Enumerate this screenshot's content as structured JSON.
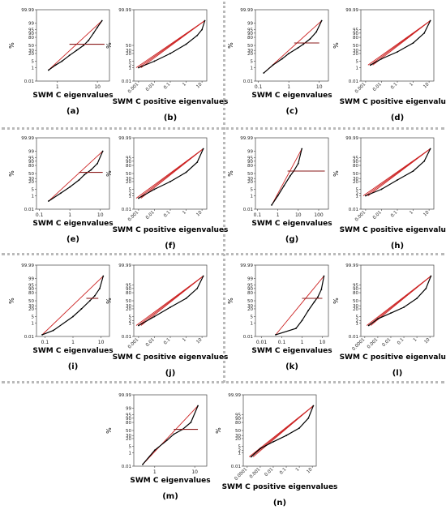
{
  "figure": {
    "y_axis_label": "%",
    "panels": [
      {
        "id": "a",
        "label": "(a)",
        "xlabel": "SWM C eigenvalues",
        "y_ticks": [
          "99.99",
          "99",
          "95",
          "90",
          "80",
          "50",
          "30",
          "20",
          "5",
          "1",
          "0.01"
        ],
        "x_ticks": [
          "1",
          "10"
        ]
      },
      {
        "id": "b",
        "label": "(b)",
        "xlabel": "SWM C positive eigenvalues",
        "y_ticks": [
          "99.99",
          "50",
          "30",
          "20",
          "5",
          "2",
          "1",
          "0.01"
        ],
        "x_ticks": [
          "0.001",
          "0.01",
          "0.1",
          "1",
          "10"
        ]
      },
      {
        "id": "c",
        "label": "(c)",
        "xlabel": "SWM C eigenvalues",
        "y_ticks": [
          "99.99",
          "99",
          "95",
          "90",
          "80",
          "50",
          "30",
          "20",
          "5",
          "1",
          "0.01"
        ],
        "x_ticks": [
          "0.1",
          "1",
          "10"
        ]
      },
      {
        "id": "d",
        "label": "(d)",
        "xlabel": "SWM C positive eigenvalues",
        "y_ticks": [
          "99.99",
          "95",
          "90",
          "80",
          "50",
          "30",
          "20",
          "5",
          "1",
          "0.01"
        ],
        "x_ticks": [
          "0.001",
          "0.01",
          "0.1",
          "1",
          "10"
        ]
      },
      {
        "id": "e",
        "label": "(e)",
        "xlabel": "SWM C eigenvalues",
        "y_ticks": [
          "99.99",
          "99",
          "95",
          "90",
          "80",
          "50",
          "30",
          "20",
          "5",
          "1",
          "0.01"
        ],
        "x_ticks": [
          "0.1",
          "1",
          "10"
        ]
      },
      {
        "id": "f",
        "label": "(f)",
        "xlabel": "SWM C positive eigenvalues",
        "y_ticks": [
          "99.99",
          "95",
          "90",
          "80",
          "50",
          "30",
          "20",
          "5",
          "2",
          "1",
          "0.01"
        ],
        "x_ticks": [
          "0.001",
          "0.01",
          "0.1",
          "1",
          "10"
        ]
      },
      {
        "id": "g",
        "label": "(g)",
        "xlabel": "SWM C eigenvalues",
        "y_ticks": [
          "99.99",
          "99",
          "95",
          "90",
          "80",
          "50",
          "30",
          "20",
          "5",
          "1",
          "0.01"
        ],
        "x_ticks": [
          "0.1",
          "1",
          "10",
          "100"
        ]
      },
      {
        "id": "h",
        "label": "(h)",
        "xlabel": "SWM C positive eigenvalues",
        "y_ticks": [
          "99.99",
          "95",
          "90",
          "80",
          "50",
          "30",
          "20",
          "5",
          "2",
          "1",
          "0.01"
        ],
        "x_ticks": [
          "0.001",
          "0.01",
          "0.1",
          "1",
          "10"
        ]
      },
      {
        "id": "i",
        "label": "(i)",
        "xlabel": "SWM C eigenvalues",
        "y_ticks": [
          "99.99",
          "99",
          "95",
          "90",
          "80",
          "50",
          "30",
          "20",
          "5",
          "1",
          "0.01"
        ],
        "x_ticks": [
          "0.1",
          "1",
          "10"
        ]
      },
      {
        "id": "j",
        "label": "(j)",
        "xlabel": "SWM C positive eigenvalues",
        "y_ticks": [
          "99.99",
          "95",
          "90",
          "80",
          "50",
          "30",
          "20",
          "5",
          "2",
          "1",
          "0.01"
        ],
        "x_ticks": [
          "0.001",
          "0.01",
          "0.1",
          "1",
          "10"
        ]
      },
      {
        "id": "k",
        "label": "(k)",
        "xlabel": "SWM C eigenvalues",
        "y_ticks": [
          "99.99",
          "99",
          "95",
          "90",
          "80",
          "50",
          "30",
          "20",
          "5",
          "1",
          "0.01"
        ],
        "x_ticks": [
          "0.01",
          "0.1",
          "1",
          "10"
        ]
      },
      {
        "id": "l",
        "label": "(l)",
        "xlabel": "SWM C positive eigenvalues",
        "y_ticks": [
          "99.99",
          "95",
          "90",
          "80",
          "50",
          "30",
          "20",
          "5",
          "2",
          "1",
          "0.01"
        ],
        "x_ticks": [
          "0.0001",
          "0.001",
          "0.01",
          "0.1",
          "1",
          "10"
        ]
      },
      {
        "id": "m",
        "label": "(m)",
        "xlabel": "SWM C eigenvalues",
        "y_ticks": [
          "99.99",
          "99",
          "95",
          "90",
          "80",
          "50",
          "30",
          "20",
          "5",
          "1",
          "0.01"
        ],
        "x_ticks": [
          "1",
          "10"
        ]
      },
      {
        "id": "n",
        "label": "(n)",
        "xlabel": "SWM C positive eigenvalues",
        "y_ticks": [
          "99.99",
          "95",
          "90",
          "80",
          "50",
          "30",
          "20",
          "5",
          "2",
          "1",
          "0.01"
        ],
        "x_ticks": [
          "0.0001",
          "0.001",
          "0.01",
          "0.1",
          "1",
          "10"
        ]
      }
    ]
  },
  "chart_data": [
    {
      "panel": "a",
      "type": "scatter",
      "x_scale": "log",
      "y_scale": "normal-probability",
      "xlim": [
        0.3,
        20
      ],
      "ylim": [
        0.01,
        99.99
      ],
      "fit_line_color": "#cc2222",
      "data_color": "#000000",
      "points": [
        [
          0.6,
          0.5
        ],
        [
          0.9,
          2
        ],
        [
          1.3,
          5
        ],
        [
          2,
          15
        ],
        [
          3,
          30
        ],
        [
          4.5,
          50
        ],
        [
          6,
          70
        ],
        [
          8,
          90
        ],
        [
          10,
          97
        ],
        [
          13,
          99.5
        ]
      ],
      "hline": {
        "y": 55,
        "x_from": 2,
        "x_to": 15
      }
    },
    {
      "panel": "b",
      "type": "scatter",
      "x_scale": "log",
      "y_scale": "normal-probability",
      "xlim": [
        0.0005,
        20
      ],
      "ylim": [
        0.01,
        99.99
      ],
      "fit_line_color": "#cc2222",
      "data_color": "#000000",
      "points": [
        [
          0.001,
          1
        ],
        [
          0.01,
          5
        ],
        [
          0.1,
          20
        ],
        [
          1,
          55
        ],
        [
          5,
          85
        ],
        [
          10,
          95
        ],
        [
          15,
          99.5
        ]
      ]
    },
    {
      "panel": "c",
      "type": "scatter",
      "x_scale": "log",
      "y_scale": "normal-probability",
      "xlim": [
        0.08,
        20
      ],
      "ylim": [
        0.01,
        99.99
      ],
      "fit_line_color": "#cc2222",
      "data_color": "#000000",
      "points": [
        [
          0.15,
          0.2
        ],
        [
          0.3,
          2
        ],
        [
          0.6,
          8
        ],
        [
          1,
          20
        ],
        [
          2,
          40
        ],
        [
          3,
          55
        ],
        [
          5,
          75
        ],
        [
          8,
          92
        ],
        [
          12,
          99.5
        ]
      ],
      "hline": {
        "y": 60,
        "x_from": 1.5,
        "x_to": 10
      }
    },
    {
      "panel": "d",
      "type": "scatter",
      "x_scale": "log",
      "y_scale": "normal-probability",
      "xlim": [
        0.0005,
        20
      ],
      "ylim": [
        0.01,
        99.99
      ],
      "fit_line_color": "#cc2222",
      "data_color": "#000000",
      "points": [
        [
          0.002,
          2
        ],
        [
          0.01,
          8
        ],
        [
          0.1,
          25
        ],
        [
          1,
          60
        ],
        [
          5,
          90
        ],
        [
          12,
          99.5
        ]
      ]
    },
    {
      "panel": "e",
      "type": "scatter",
      "x_scale": "log",
      "y_scale": "normal-probability",
      "xlim": [
        0.08,
        20
      ],
      "ylim": [
        0.01,
        99.99
      ],
      "fit_line_color": "#cc2222",
      "data_color": "#000000",
      "points": [
        [
          0.2,
          0.2
        ],
        [
          0.5,
          2
        ],
        [
          1,
          8
        ],
        [
          2,
          25
        ],
        [
          3,
          45
        ],
        [
          5,
          65
        ],
        [
          8,
          85
        ],
        [
          12,
          99
        ]
      ],
      "hline": {
        "y": 55,
        "x_from": 2,
        "x_to": 12
      }
    },
    {
      "panel": "f",
      "type": "scatter",
      "x_scale": "log",
      "y_scale": "normal-probability",
      "xlim": [
        0.0005,
        20
      ],
      "ylim": [
        0.01,
        99.99
      ],
      "fit_line_color": "#cc2222",
      "data_color": "#000000",
      "points": [
        [
          0.001,
          0.5
        ],
        [
          0.01,
          5
        ],
        [
          0.1,
          20
        ],
        [
          1,
          55
        ],
        [
          5,
          88
        ],
        [
          12,
          99.5
        ]
      ]
    },
    {
      "panel": "g",
      "type": "scatter",
      "x_scale": "log",
      "y_scale": "normal-probability",
      "xlim": [
        0.08,
        300
      ],
      "ylim": [
        0.01,
        99.99
      ],
      "fit_line_color": "#cc2222",
      "data_color": "#000000",
      "points": [
        [
          0.5,
          0.05
        ],
        [
          1,
          1
        ],
        [
          2,
          10
        ],
        [
          4,
          40
        ],
        [
          6,
          60
        ],
        [
          10,
          85
        ],
        [
          15,
          99.5
        ]
      ],
      "hline": {
        "y": 60,
        "x_from": 3,
        "x_to": 200
      }
    },
    {
      "panel": "h",
      "type": "scatter",
      "x_scale": "log",
      "y_scale": "normal-probability",
      "xlim": [
        0.0005,
        20
      ],
      "ylim": [
        0.01,
        99.99
      ],
      "fit_line_color": "#cc2222",
      "data_color": "#000000",
      "points": [
        [
          0.001,
          1
        ],
        [
          0.01,
          5
        ],
        [
          0.1,
          25
        ],
        [
          1,
          60
        ],
        [
          5,
          90
        ],
        [
          12,
          99.5
        ]
      ]
    },
    {
      "panel": "i",
      "type": "scatter",
      "x_scale": "log",
      "y_scale": "normal-probability",
      "xlim": [
        0.05,
        20
      ],
      "ylim": [
        0.01,
        99.99
      ],
      "fit_line_color": "#cc2222",
      "data_color": "#000000",
      "points": [
        [
          0.08,
          0.02
        ],
        [
          0.2,
          0.1
        ],
        [
          1,
          5
        ],
        [
          2,
          20
        ],
        [
          4,
          50
        ],
        [
          6,
          70
        ],
        [
          9,
          90
        ],
        [
          12,
          99.5
        ]
      ],
      "hline": {
        "y": 60,
        "x_from": 3,
        "x_to": 8
      }
    },
    {
      "panel": "j",
      "type": "scatter",
      "x_scale": "log",
      "y_scale": "normal-probability",
      "xlim": [
        0.0005,
        20
      ],
      "ylim": [
        0.01,
        99.99
      ],
      "fit_line_color": "#cc2222",
      "data_color": "#000000",
      "points": [
        [
          0.001,
          0.5
        ],
        [
          0.01,
          5
        ],
        [
          0.1,
          25
        ],
        [
          1,
          60
        ],
        [
          5,
          90
        ],
        [
          12,
          99.5
        ]
      ]
    },
    {
      "panel": "k",
      "type": "scatter",
      "x_scale": "log",
      "y_scale": "normal-probability",
      "xlim": [
        0.005,
        20
      ],
      "ylim": [
        0.01,
        99.99
      ],
      "fit_line_color": "#cc2222",
      "data_color": "#000000",
      "points": [
        [
          0.05,
          0.02
        ],
        [
          0.5,
          0.2
        ],
        [
          1,
          2
        ],
        [
          2,
          15
        ],
        [
          4,
          45
        ],
        [
          6,
          65
        ],
        [
          9,
          88
        ],
        [
          12,
          99.5
        ]
      ],
      "hline": {
        "y": 60,
        "x_from": 1,
        "x_to": 10
      }
    },
    {
      "panel": "l",
      "type": "scatter",
      "x_scale": "log",
      "y_scale": "normal-probability",
      "xlim": [
        5e-05,
        20
      ],
      "ylim": [
        0.01,
        99.99
      ],
      "fit_line_color": "#cc2222",
      "data_color": "#000000",
      "points": [
        [
          0.0002,
          0.5
        ],
        [
          0.001,
          3
        ],
        [
          0.01,
          10
        ],
        [
          0.1,
          25
        ],
        [
          1,
          60
        ],
        [
          5,
          90
        ],
        [
          12,
          99.5
        ]
      ]
    },
    {
      "panel": "m",
      "type": "scatter",
      "x_scale": "log",
      "y_scale": "normal-probability",
      "xlim": [
        0.3,
        20
      ],
      "ylim": [
        0.01,
        99.99
      ],
      "fit_line_color": "#cc2222",
      "data_color": "#000000",
      "points": [
        [
          0.5,
          0.02
        ],
        [
          1,
          2
        ],
        [
          2,
          15
        ],
        [
          3,
          35
        ],
        [
          5,
          55
        ],
        [
          8,
          80
        ],
        [
          12,
          99.5
        ]
      ],
      "hline": {
        "y": 55,
        "x_from": 3,
        "x_to": 12
      }
    },
    {
      "panel": "n",
      "type": "scatter",
      "x_scale": "log",
      "y_scale": "normal-probability",
      "xlim": [
        5e-05,
        20
      ],
      "ylim": [
        0.01,
        99.99
      ],
      "fit_line_color": "#cc2222",
      "data_color": "#000000",
      "points": [
        [
          0.0002,
          0.3
        ],
        [
          0.001,
          3
        ],
        [
          0.01,
          12
        ],
        [
          0.1,
          30
        ],
        [
          1,
          60
        ],
        [
          5,
          90
        ],
        [
          12,
          99.5
        ]
      ]
    }
  ]
}
